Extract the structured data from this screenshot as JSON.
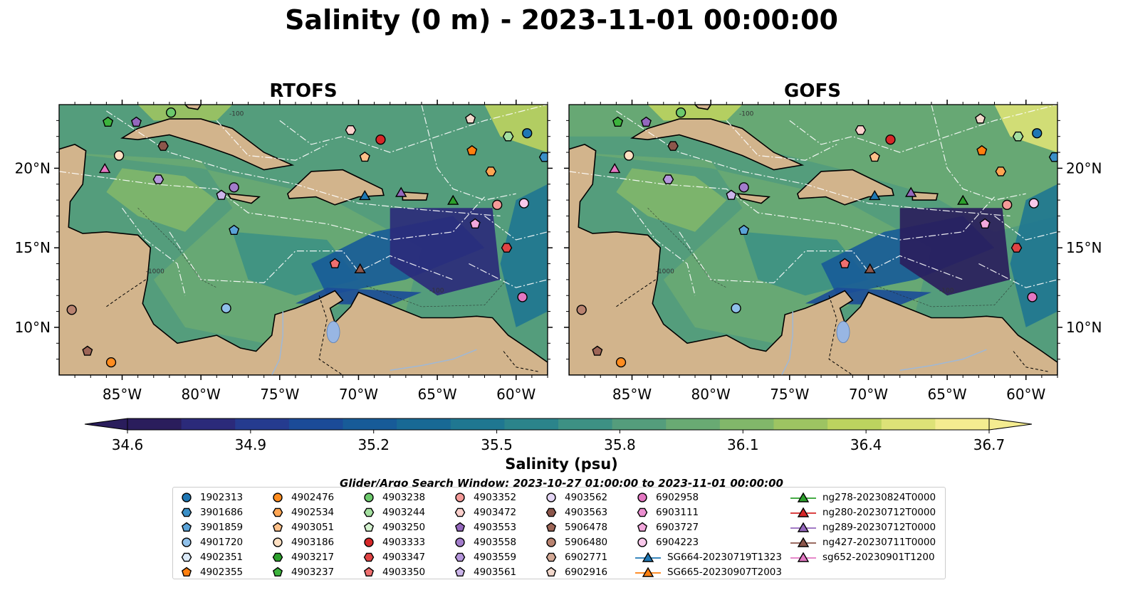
{
  "title": "Salinity (0 m) - 2023-11-01 00:00:00",
  "panels": [
    {
      "title": "RTOFS"
    },
    {
      "title": "GOFS"
    }
  ],
  "map": {
    "lon_range": [
      -89,
      -58
    ],
    "lat_range": [
      7,
      24
    ],
    "lon_ticks": [
      "85°W",
      "80°W",
      "75°W",
      "70°W",
      "65°W",
      "60°W"
    ],
    "lat_ticks": [
      "20°N",
      "15°N",
      "10°N"
    ],
    "land_color": "#d2b48c",
    "contour_labels": [
      "-100",
      "-1000",
      "-100"
    ]
  },
  "colorbar": {
    "label": "Salinity (psu)",
    "range": [
      34.6,
      36.7
    ],
    "ticks": [
      "34.6",
      "34.9",
      "35.2",
      "35.5",
      "35.8",
      "36.1",
      "36.4",
      "36.7"
    ],
    "colormap": [
      "#2a1d5c",
      "#2b2a7a",
      "#253b8f",
      "#1b4b98",
      "#175b98",
      "#186995",
      "#1f7791",
      "#2b848b",
      "#3d9184",
      "#549d7c",
      "#69aa73",
      "#81b76a",
      "#9dc462",
      "#bcd35f",
      "#dde277",
      "#f4ec90"
    ]
  },
  "legend": {
    "title": "Glider/Argo Search Window: 2023-10-27 01:00:00 to 2023-11-01 00:00:00",
    "items": [
      {
        "label": "1902313",
        "marker": "circle",
        "color": "#1f77b4"
      },
      {
        "label": "3901686",
        "marker": "hexagon",
        "color": "#3a8fc7"
      },
      {
        "label": "3901859",
        "marker": "pentagon",
        "color": "#5aa3d8"
      },
      {
        "label": "4901720",
        "marker": "circle",
        "color": "#8fc0ea"
      },
      {
        "label": "4902351",
        "marker": "hexagon",
        "color": "#dbeaf8"
      },
      {
        "label": "4902355",
        "marker": "pentagon",
        "color": "#ff7f0e"
      },
      {
        "label": "4902476",
        "marker": "circle",
        "color": "#ff8c1f"
      },
      {
        "label": "4902534",
        "marker": "hexagon",
        "color": "#ffa552"
      },
      {
        "label": "4903051",
        "marker": "pentagon",
        "color": "#ffc18a"
      },
      {
        "label": "4903186",
        "marker": "circle",
        "color": "#ffe0c2"
      },
      {
        "label": "4903217",
        "marker": "hexagon",
        "color": "#2ca02c"
      },
      {
        "label": "4903237",
        "marker": "pentagon",
        "color": "#3cb33c"
      },
      {
        "label": "4903238",
        "marker": "circle",
        "color": "#6cc96c"
      },
      {
        "label": "4903244",
        "marker": "hexagon",
        "color": "#a4e0a0"
      },
      {
        "label": "4903250",
        "marker": "pentagon",
        "color": "#d4f2cf"
      },
      {
        "label": "4903333",
        "marker": "circle",
        "color": "#d62728"
      },
      {
        "label": "4903347",
        "marker": "hexagon",
        "color": "#e04444"
      },
      {
        "label": "4903350",
        "marker": "pentagon",
        "color": "#ef6f6f"
      },
      {
        "label": "4903352",
        "marker": "circle",
        "color": "#f49a98"
      },
      {
        "label": "4903472",
        "marker": "hexagon",
        "color": "#fbd0cc"
      },
      {
        "label": "4903553",
        "marker": "pentagon",
        "color": "#9467bd"
      },
      {
        "label": "4903558",
        "marker": "circle",
        "color": "#a27ccb"
      },
      {
        "label": "4903559",
        "marker": "hexagon",
        "color": "#b596dc"
      },
      {
        "label": "4903561",
        "marker": "pentagon",
        "color": "#cbb5ea"
      },
      {
        "label": "4903562",
        "marker": "circle",
        "color": "#e4d6f5"
      },
      {
        "label": "4903563",
        "marker": "hexagon",
        "color": "#8c564b"
      },
      {
        "label": "5906478",
        "marker": "pentagon",
        "color": "#9e6657"
      },
      {
        "label": "5906480",
        "marker": "circle",
        "color": "#b98370"
      },
      {
        "label": "6902771",
        "marker": "hexagon",
        "color": "#d3a996"
      },
      {
        "label": "6902916",
        "marker": "pentagon",
        "color": "#f2d8cc"
      },
      {
        "label": "6902958",
        "marker": "circle",
        "color": "#e377c2"
      },
      {
        "label": "6903111",
        "marker": "hexagon",
        "color": "#eb8fd0"
      },
      {
        "label": "6903727",
        "marker": "pentagon",
        "color": "#f2a7dc"
      },
      {
        "label": "6904223",
        "marker": "circle",
        "color": "#f8c8ea"
      },
      {
        "label": "SG664-20230719T1323",
        "marker": "triangle-line",
        "color": "#1f77b4"
      },
      {
        "label": "SG665-20230907T2003",
        "marker": "triangle-line",
        "color": "#ff7f0e"
      },
      {
        "label": "ng278-20230824T0000",
        "marker": "triangle-line",
        "color": "#2ca02c"
      },
      {
        "label": "ng280-20230712T0000",
        "marker": "triangle-line",
        "color": "#d62728"
      },
      {
        "label": "ng289-20230712T0000",
        "marker": "triangle-line",
        "color": "#9467bd"
      },
      {
        "label": "ng427-20230711T0000",
        "marker": "triangle-line",
        "color": "#8c564b"
      },
      {
        "label": "sg652-20230901T1200",
        "marker": "triangle-line",
        "color": "#e377c2"
      }
    ]
  },
  "observations": [
    {
      "id": "1902313",
      "lon": -59.3,
      "lat": 22.2
    },
    {
      "id": "3901686",
      "lon": -58.2,
      "lat": 20.7
    },
    {
      "id": "3901859",
      "lon": -77.9,
      "lat": 16.1
    },
    {
      "id": "4901720",
      "lon": -78.4,
      "lat": 11.2
    },
    {
      "id": "4902355",
      "lon": -62.8,
      "lat": 21.1
    },
    {
      "id": "4902476",
      "lon": -85.7,
      "lat": 7.8
    },
    {
      "id": "4902534",
      "lon": -61.6,
      "lat": 19.8
    },
    {
      "id": "4903051",
      "lon": -69.6,
      "lat": 20.7
    },
    {
      "id": "4903186",
      "lon": -85.2,
      "lat": 20.8
    },
    {
      "id": "4903237",
      "lon": -85.9,
      "lat": 22.9
    },
    {
      "id": "4903238",
      "lon": -81.9,
      "lat": 23.5
    },
    {
      "id": "4903244",
      "lon": -60.5,
      "lat": 22.0
    },
    {
      "id": "4903333",
      "lon": -68.6,
      "lat": 21.8
    },
    {
      "id": "4903347",
      "lon": -60.6,
      "lat": 15.0
    },
    {
      "id": "4903350",
      "lon": -71.5,
      "lat": 14.0
    },
    {
      "id": "4903352",
      "lon": -61.2,
      "lat": 17.7
    },
    {
      "id": "4903472",
      "lon": -70.5,
      "lat": 22.4
    },
    {
      "id": "4903553",
      "lon": -84.1,
      "lat": 22.9
    },
    {
      "id": "4903558",
      "lon": -77.9,
      "lat": 18.8
    },
    {
      "id": "4903559",
      "lon": -82.7,
      "lat": 19.3
    },
    {
      "id": "4903561",
      "lon": -78.7,
      "lat": 18.3
    },
    {
      "id": "4903563",
      "lon": -82.4,
      "lat": 21.4
    },
    {
      "id": "5906478",
      "lon": -87.2,
      "lat": 8.5
    },
    {
      "id": "5906480",
      "lon": -88.2,
      "lat": 11.1
    },
    {
      "id": "6902916",
      "lon": -62.9,
      "lat": 23.1
    },
    {
      "id": "6902958",
      "lon": -59.6,
      "lat": 11.9
    },
    {
      "id": "6903727",
      "lon": -62.6,
      "lat": 16.5
    },
    {
      "id": "6904223",
      "lon": -59.5,
      "lat": 17.8
    },
    {
      "id": "SG664",
      "lon": -69.6,
      "lat": 18.3
    },
    {
      "id": "ng278",
      "lon": -64.0,
      "lat": 18.0
    },
    {
      "id": "ng289",
      "lon": -67.3,
      "lat": 18.5
    },
    {
      "id": "ng427",
      "lon": -69.9,
      "lat": 13.7
    },
    {
      "id": "sg652",
      "lon": -86.1,
      "lat": 20.0
    }
  ]
}
